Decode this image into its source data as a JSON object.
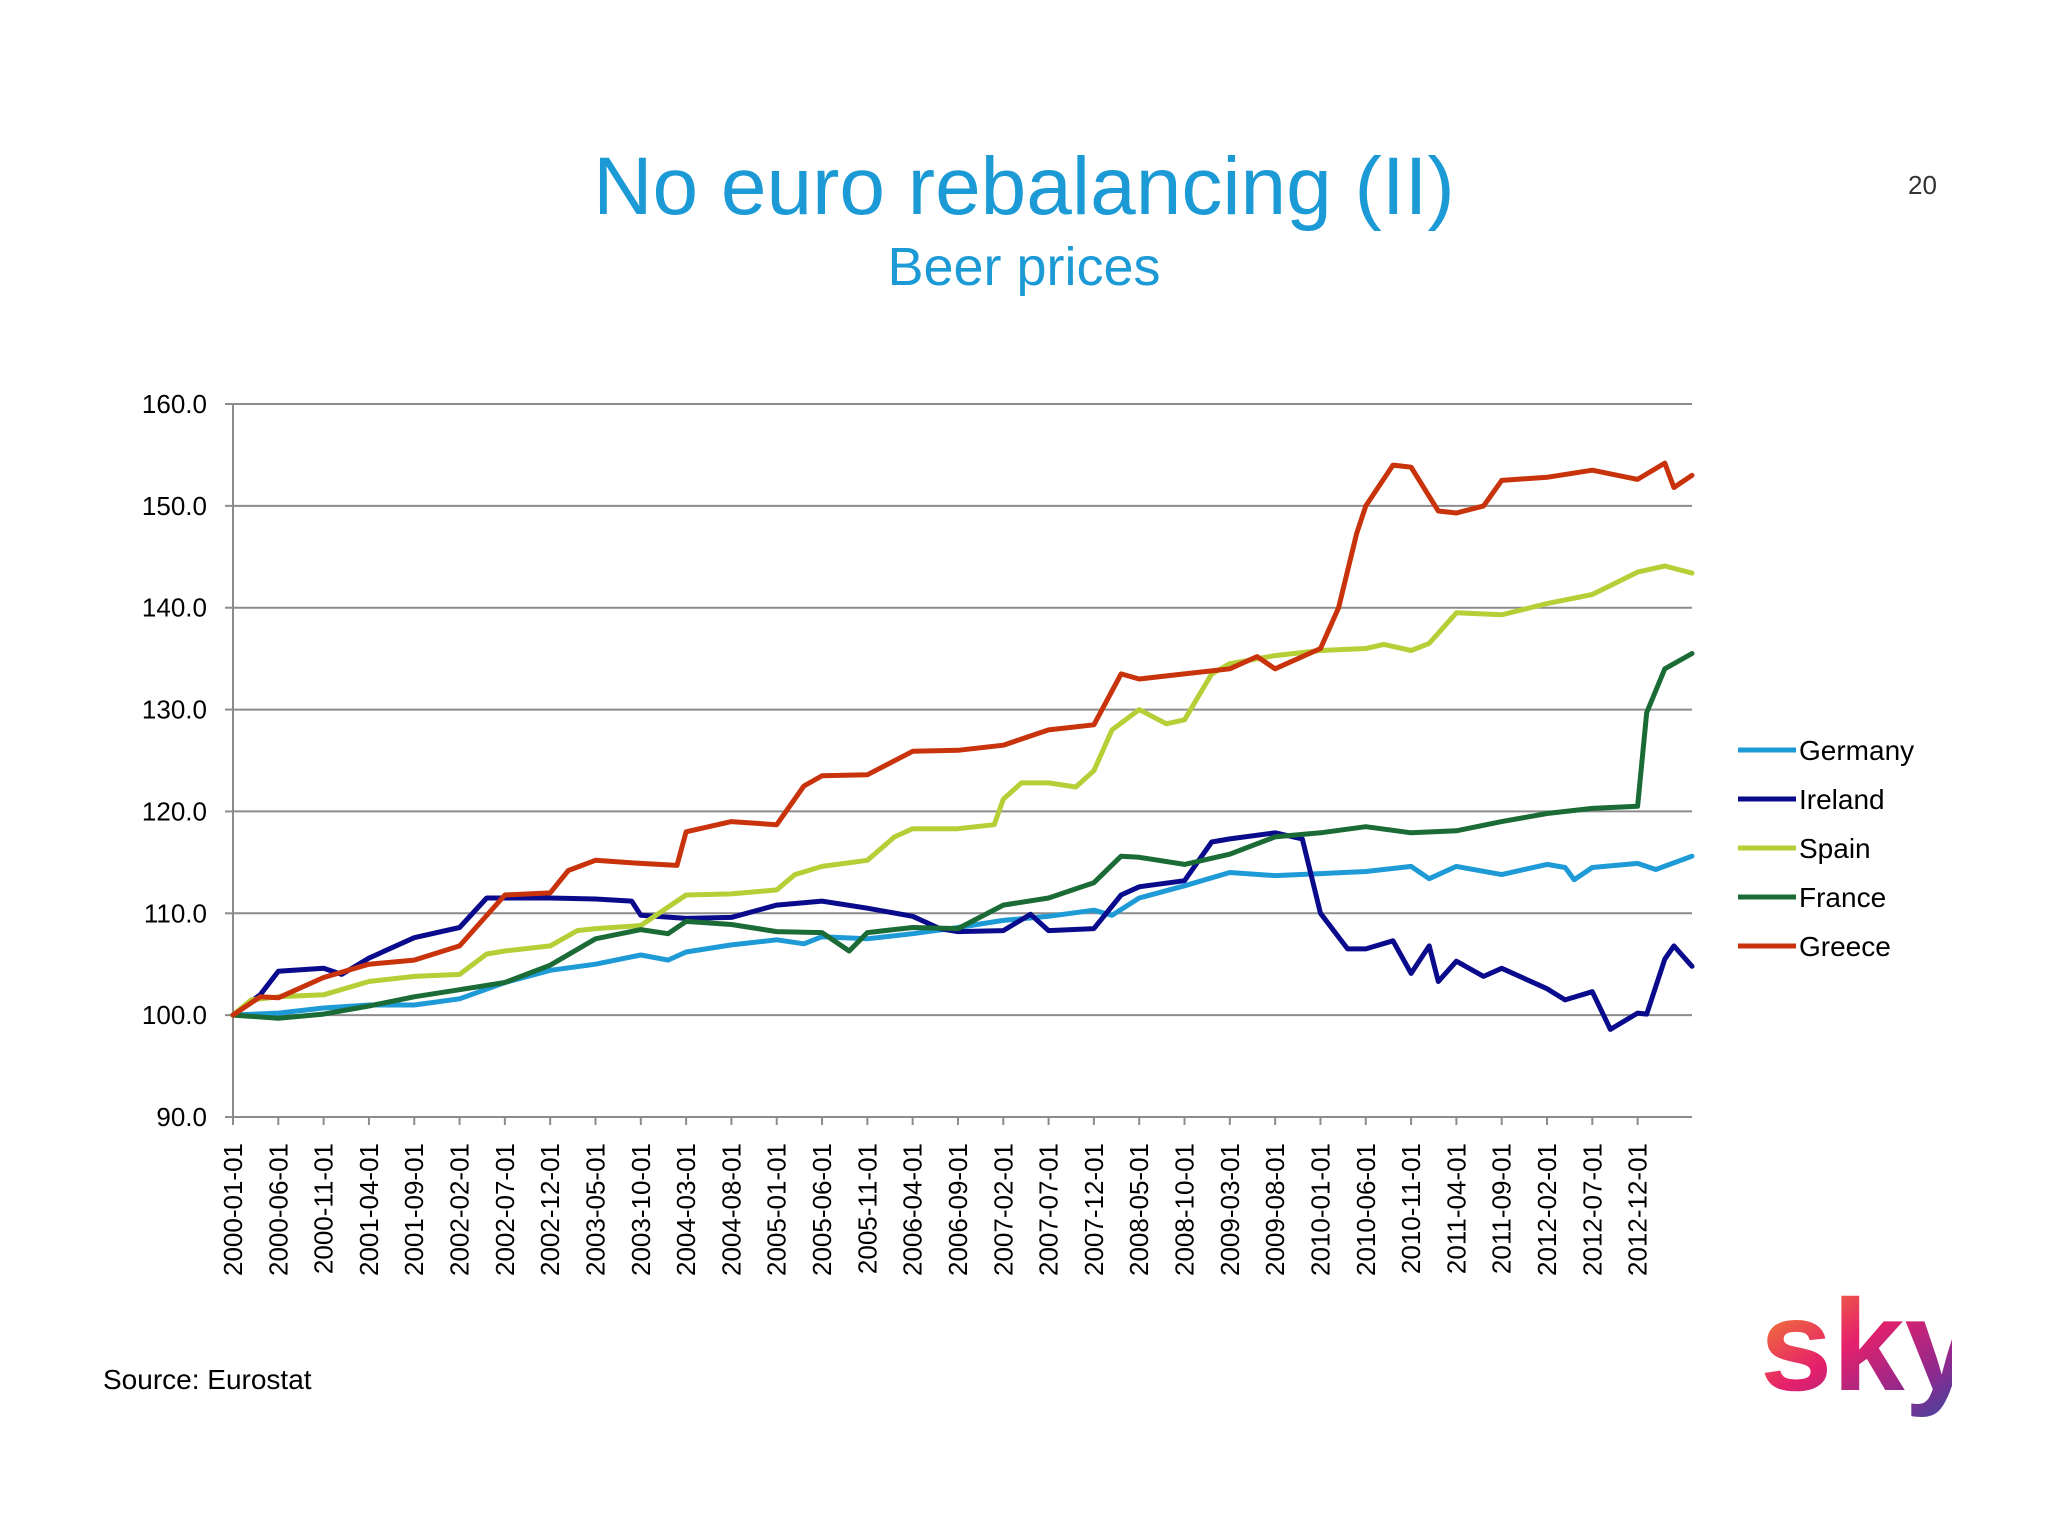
{
  "slide": {
    "title": "No euro rebalancing (II)",
    "subtitle": "Beer prices",
    "page_number": "20",
    "source": "Source: Eurostat",
    "logo_text": "sky"
  },
  "chart_data": {
    "type": "line",
    "title": "",
    "xlabel": "",
    "ylabel": "",
    "ylim": [
      90,
      160
    ],
    "y_ticks": [
      90,
      100,
      110,
      120,
      130,
      140,
      150,
      160
    ],
    "y_tick_labels": [
      "90.0",
      "100.0",
      "110.0",
      "120.0",
      "130.0",
      "140.0",
      "150.0",
      "160.0"
    ],
    "x_range": [
      "2000-01-01",
      "2013-06-01"
    ],
    "x_tick_labels": [
      "2000-01-01",
      "2000-06-01",
      "2000-11-01",
      "2001-04-01",
      "2001-09-01",
      "2002-02-01",
      "2002-07-01",
      "2002-12-01",
      "2003-05-01",
      "2003-10-01",
      "2004-03-01",
      "2004-08-01",
      "2005-01-01",
      "2005-06-01",
      "2005-11-01",
      "2006-04-01",
      "2006-09-01",
      "2007-02-01",
      "2007-07-01",
      "2007-12-01",
      "2008-05-01",
      "2008-10-01",
      "2009-03-01",
      "2009-08-01",
      "2010-01-01",
      "2010-06-01",
      "2010-11-01",
      "2011-04-01",
      "2011-09-01",
      "2012-02-01",
      "2012-07-01",
      "2012-12-01"
    ],
    "grid": "horizontal",
    "legend_position": "right",
    "series": [
      {
        "name": "Germany",
        "color": "#1e9ad6",
        "points": [
          [
            "2000-01-01",
            100.0
          ],
          [
            "2000-06-01",
            100.2
          ],
          [
            "2000-11-01",
            100.7
          ],
          [
            "2001-04-01",
            101.0
          ],
          [
            "2001-09-01",
            101.0
          ],
          [
            "2002-02-01",
            101.6
          ],
          [
            "2002-07-01",
            103.2
          ],
          [
            "2002-12-01",
            104.4
          ],
          [
            "2003-05-01",
            105.0
          ],
          [
            "2003-10-01",
            105.9
          ],
          [
            "2004-01-01",
            105.4
          ],
          [
            "2004-03-01",
            106.2
          ],
          [
            "2004-08-01",
            106.9
          ],
          [
            "2005-01-01",
            107.4
          ],
          [
            "2005-04-01",
            107.0
          ],
          [
            "2005-06-01",
            107.7
          ],
          [
            "2005-11-01",
            107.5
          ],
          [
            "2006-04-01",
            108.0
          ],
          [
            "2006-09-01",
            108.6
          ],
          [
            "2007-02-01",
            109.3
          ],
          [
            "2007-07-01",
            109.7
          ],
          [
            "2007-12-01",
            110.3
          ],
          [
            "2008-02-01",
            109.8
          ],
          [
            "2008-05-01",
            111.5
          ],
          [
            "2008-10-01",
            112.7
          ],
          [
            "2009-03-01",
            114.0
          ],
          [
            "2009-08-01",
            113.7
          ],
          [
            "2010-01-01",
            113.9
          ],
          [
            "2010-06-01",
            114.1
          ],
          [
            "2010-11-01",
            114.6
          ],
          [
            "2011-01-01",
            113.4
          ],
          [
            "2011-04-01",
            114.6
          ],
          [
            "2011-09-01",
            113.8
          ],
          [
            "2012-02-01",
            114.8
          ],
          [
            "2012-04-01",
            114.5
          ],
          [
            "2012-05-01",
            113.3
          ],
          [
            "2012-07-01",
            114.5
          ],
          [
            "2012-12-01",
            114.9
          ],
          [
            "2013-02-01",
            114.3
          ],
          [
            "2013-06-01",
            115.6
          ]
        ]
      },
      {
        "name": "Ireland",
        "color": "#0a0a8c",
        "points": [
          [
            "2000-01-01",
            100.0
          ],
          [
            "2000-04-01",
            102.0
          ],
          [
            "2000-06-01",
            104.3
          ],
          [
            "2000-11-01",
            104.6
          ],
          [
            "2001-01-01",
            104.0
          ],
          [
            "2001-04-01",
            105.6
          ],
          [
            "2001-09-01",
            107.6
          ],
          [
            "2002-02-01",
            108.6
          ],
          [
            "2002-05-01",
            111.5
          ],
          [
            "2002-07-01",
            111.5
          ],
          [
            "2002-12-01",
            111.5
          ],
          [
            "2003-05-01",
            111.4
          ],
          [
            "2003-09-01",
            111.2
          ],
          [
            "2003-10-01",
            109.8
          ],
          [
            "2004-03-01",
            109.5
          ],
          [
            "2004-08-01",
            109.6
          ],
          [
            "2005-01-01",
            110.8
          ],
          [
            "2005-06-01",
            111.2
          ],
          [
            "2005-11-01",
            110.5
          ],
          [
            "2006-04-01",
            109.7
          ],
          [
            "2006-07-01",
            108.5
          ],
          [
            "2006-09-01",
            108.2
          ],
          [
            "2007-02-01",
            108.3
          ],
          [
            "2007-05-01",
            109.9
          ],
          [
            "2007-07-01",
            108.3
          ],
          [
            "2007-12-01",
            108.5
          ],
          [
            "2008-03-01",
            111.8
          ],
          [
            "2008-05-01",
            112.6
          ],
          [
            "2008-10-01",
            113.2
          ],
          [
            "2009-01-01",
            117.0
          ],
          [
            "2009-03-01",
            117.3
          ],
          [
            "2009-08-01",
            117.9
          ],
          [
            "2009-11-01",
            117.3
          ],
          [
            "2010-01-01",
            110.0
          ],
          [
            "2010-04-01",
            106.5
          ],
          [
            "2010-06-01",
            106.5
          ],
          [
            "2010-09-01",
            107.3
          ],
          [
            "2010-11-01",
            104.1
          ],
          [
            "2011-01-01",
            106.8
          ],
          [
            "2011-02-01",
            103.3
          ],
          [
            "2011-04-01",
            105.3
          ],
          [
            "2011-07-01",
            103.8
          ],
          [
            "2011-09-01",
            104.6
          ],
          [
            "2012-02-01",
            102.6
          ],
          [
            "2012-04-01",
            101.5
          ],
          [
            "2012-07-01",
            102.3
          ],
          [
            "2012-09-01",
            98.6
          ],
          [
            "2012-12-01",
            100.2
          ],
          [
            "2013-01-01",
            100.1
          ],
          [
            "2013-03-01",
            105.5
          ],
          [
            "2013-04-01",
            106.8
          ],
          [
            "2013-06-01",
            104.8
          ]
        ]
      },
      {
        "name": "Spain",
        "color": "#b5cf37",
        "points": [
          [
            "2000-01-01",
            100.0
          ],
          [
            "2000-03-01",
            101.5
          ],
          [
            "2000-06-01",
            101.8
          ],
          [
            "2000-11-01",
            102.0
          ],
          [
            "2001-04-01",
            103.3
          ],
          [
            "2001-09-01",
            103.8
          ],
          [
            "2002-02-01",
            104.0
          ],
          [
            "2002-05-01",
            106.0
          ],
          [
            "2002-07-01",
            106.3
          ],
          [
            "2002-12-01",
            106.8
          ],
          [
            "2003-03-01",
            108.3
          ],
          [
            "2003-05-01",
            108.5
          ],
          [
            "2003-10-01",
            108.8
          ],
          [
            "2004-03-01",
            111.8
          ],
          [
            "2004-08-01",
            111.9
          ],
          [
            "2005-01-01",
            112.3
          ],
          [
            "2005-03-01",
            113.8
          ],
          [
            "2005-06-01",
            114.6
          ],
          [
            "2005-11-01",
            115.2
          ],
          [
            "2006-02-01",
            117.5
          ],
          [
            "2006-04-01",
            118.3
          ],
          [
            "2006-09-01",
            118.3
          ],
          [
            "2007-01-01",
            118.7
          ],
          [
            "2007-02-01",
            121.2
          ],
          [
            "2007-04-01",
            122.8
          ],
          [
            "2007-07-01",
            122.8
          ],
          [
            "2007-10-01",
            122.4
          ],
          [
            "2007-12-01",
            124.0
          ],
          [
            "2008-02-01",
            128.0
          ],
          [
            "2008-05-01",
            130.0
          ],
          [
            "2008-08-01",
            128.6
          ],
          [
            "2008-10-01",
            129.0
          ],
          [
            "2009-01-01",
            133.5
          ],
          [
            "2009-03-01",
            134.5
          ],
          [
            "2009-08-01",
            135.3
          ],
          [
            "2010-01-01",
            135.8
          ],
          [
            "2010-06-01",
            136.0
          ],
          [
            "2010-08-01",
            136.4
          ],
          [
            "2010-11-01",
            135.8
          ],
          [
            "2011-01-01",
            136.5
          ],
          [
            "2011-04-01",
            139.5
          ],
          [
            "2011-09-01",
            139.3
          ],
          [
            "2012-02-01",
            140.4
          ],
          [
            "2012-07-01",
            141.3
          ],
          [
            "2012-12-01",
            143.5
          ],
          [
            "2013-03-01",
            144.1
          ],
          [
            "2013-06-01",
            143.4
          ]
        ]
      },
      {
        "name": "France",
        "color": "#1a6b35",
        "points": [
          [
            "2000-01-01",
            100.0
          ],
          [
            "2000-06-01",
            99.7
          ],
          [
            "2000-11-01",
            100.1
          ],
          [
            "2001-04-01",
            100.9
          ],
          [
            "2001-09-01",
            101.8
          ],
          [
            "2002-02-01",
            102.5
          ],
          [
            "2002-07-01",
            103.2
          ],
          [
            "2002-12-01",
            104.9
          ],
          [
            "2003-05-01",
            107.5
          ],
          [
            "2003-10-01",
            108.4
          ],
          [
            "2004-01-01",
            108.0
          ],
          [
            "2004-03-01",
            109.2
          ],
          [
            "2004-08-01",
            108.9
          ],
          [
            "2005-01-01",
            108.2
          ],
          [
            "2005-06-01",
            108.1
          ],
          [
            "2005-09-01",
            106.3
          ],
          [
            "2005-11-01",
            108.1
          ],
          [
            "2006-04-01",
            108.6
          ],
          [
            "2006-09-01",
            108.5
          ],
          [
            "2007-02-01",
            110.8
          ],
          [
            "2007-07-01",
            111.5
          ],
          [
            "2007-12-01",
            113.0
          ],
          [
            "2008-03-01",
            115.6
          ],
          [
            "2008-05-01",
            115.5
          ],
          [
            "2008-10-01",
            114.8
          ],
          [
            "2009-03-01",
            115.8
          ],
          [
            "2009-08-01",
            117.5
          ],
          [
            "2010-01-01",
            117.9
          ],
          [
            "2010-06-01",
            118.5
          ],
          [
            "2010-11-01",
            117.9
          ],
          [
            "2011-04-01",
            118.1
          ],
          [
            "2011-09-01",
            119.0
          ],
          [
            "2012-02-01",
            119.8
          ],
          [
            "2012-07-01",
            120.3
          ],
          [
            "2012-12-01",
            120.5
          ],
          [
            "2013-01-01",
            129.7
          ],
          [
            "2013-03-01",
            134.0
          ],
          [
            "2013-06-01",
            135.5
          ]
        ]
      },
      {
        "name": "Greece",
        "color": "#c8330c",
        "points": [
          [
            "2000-01-01",
            100.0
          ],
          [
            "2000-04-01",
            101.8
          ],
          [
            "2000-06-01",
            101.7
          ],
          [
            "2000-11-01",
            103.7
          ],
          [
            "2001-04-01",
            105.0
          ],
          [
            "2001-09-01",
            105.4
          ],
          [
            "2002-02-01",
            106.8
          ],
          [
            "2002-07-01",
            111.8
          ],
          [
            "2002-12-01",
            112.0
          ],
          [
            "2003-02-01",
            114.2
          ],
          [
            "2003-05-01",
            115.2
          ],
          [
            "2003-10-01",
            114.9
          ],
          [
            "2004-02-01",
            114.7
          ],
          [
            "2004-03-01",
            118.0
          ],
          [
            "2004-08-01",
            119.0
          ],
          [
            "2005-01-01",
            118.7
          ],
          [
            "2005-04-01",
            122.5
          ],
          [
            "2005-06-01",
            123.5
          ],
          [
            "2005-11-01",
            123.6
          ],
          [
            "2006-04-01",
            125.9
          ],
          [
            "2006-09-01",
            126.0
          ],
          [
            "2007-02-01",
            126.5
          ],
          [
            "2007-07-01",
            128.0
          ],
          [
            "2007-12-01",
            128.5
          ],
          [
            "2008-03-01",
            133.5
          ],
          [
            "2008-05-01",
            133.0
          ],
          [
            "2008-10-01",
            133.5
          ],
          [
            "2009-03-01",
            134.0
          ],
          [
            "2009-06-01",
            135.2
          ],
          [
            "2009-08-01",
            134.0
          ],
          [
            "2010-01-01",
            136.0
          ],
          [
            "2010-03-01",
            140.0
          ],
          [
            "2010-05-01",
            147.3
          ],
          [
            "2010-06-01",
            150.0
          ],
          [
            "2010-09-01",
            154.0
          ],
          [
            "2010-11-01",
            153.8
          ],
          [
            "2011-02-01",
            149.5
          ],
          [
            "2011-04-01",
            149.3
          ],
          [
            "2011-07-01",
            150.0
          ],
          [
            "2011-09-01",
            152.5
          ],
          [
            "2012-02-01",
            152.8
          ],
          [
            "2012-07-01",
            153.5
          ],
          [
            "2012-12-01",
            152.6
          ],
          [
            "2013-03-01",
            154.2
          ],
          [
            "2013-04-01",
            151.8
          ],
          [
            "2013-06-01",
            153.0
          ]
        ]
      }
    ]
  }
}
